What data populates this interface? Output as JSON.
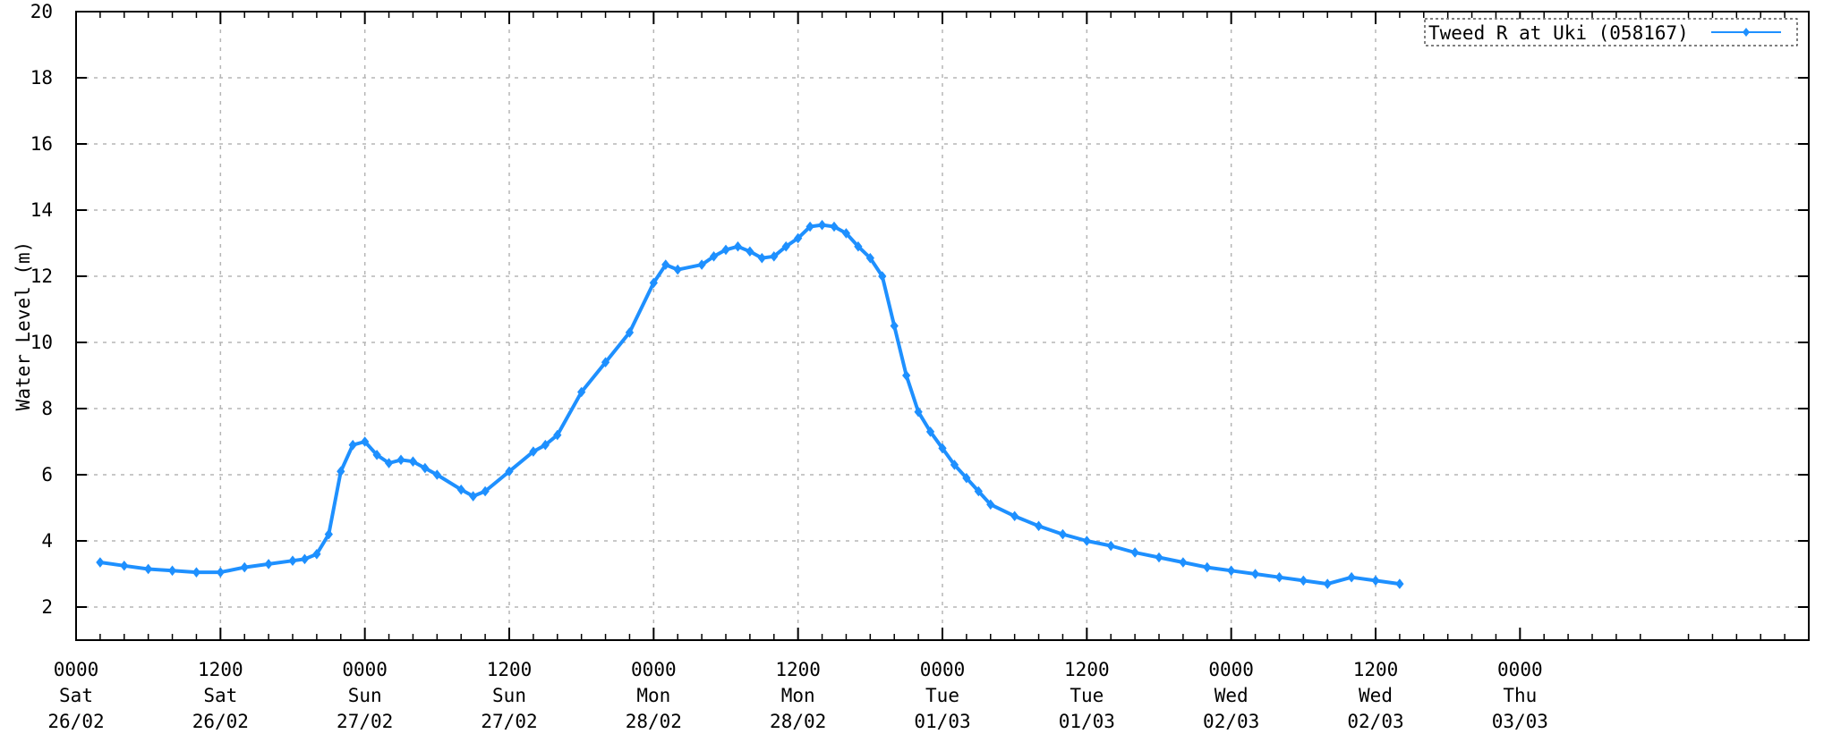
{
  "chart_data": {
    "type": "line",
    "title": "",
    "xlabel": "",
    "ylabel": "Water Level (m)",
    "ylim": [
      1,
      20
    ],
    "yticks": [
      2,
      4,
      6,
      8,
      10,
      12,
      14,
      16,
      18,
      20
    ],
    "xlim_hours": [
      0,
      144
    ],
    "grid": true,
    "legend_position": "top-right",
    "colors": {
      "series": "#1E90FF",
      "grid": "#b5b5b5",
      "axis": "#000000"
    },
    "x_tick_labels": [
      {
        "time": "0000",
        "day": "Sat",
        "date": "26/02"
      },
      {
        "time": "1200",
        "day": "Sat",
        "date": "26/02"
      },
      {
        "time": "0000",
        "day": "Sun",
        "date": "27/02"
      },
      {
        "time": "1200",
        "day": "Sun",
        "date": "27/02"
      },
      {
        "time": "0000",
        "day": "Mon",
        "date": "28/02"
      },
      {
        "time": "1200",
        "day": "Mon",
        "date": "28/02"
      },
      {
        "time": "0000",
        "day": "Tue",
        "date": "01/03"
      },
      {
        "time": "1200",
        "day": "Tue",
        "date": "01/03"
      },
      {
        "time": "0000",
        "day": "Wed",
        "date": "02/03"
      },
      {
        "time": "1200",
        "day": "Wed",
        "date": "02/03"
      },
      {
        "time": "0000",
        "day": "Thu",
        "date": "03/03"
      }
    ],
    "series": [
      {
        "name": "Tweed R at Uki (058167)",
        "x": [
          "26/02 02:00",
          "26/02 04:00",
          "26/02 06:00",
          "26/02 08:00",
          "26/02 10:00",
          "26/02 12:00",
          "26/02 14:00",
          "26/02 16:00",
          "26/02 18:00",
          "26/02 19:00",
          "26/02 20:00",
          "26/02 21:00",
          "26/02 22:00",
          "26/02 23:00",
          "27/02 00:00",
          "27/02 01:00",
          "27/02 02:00",
          "27/02 03:00",
          "27/02 04:00",
          "27/02 05:00",
          "27/02 06:00",
          "27/02 08:00",
          "27/02 09:00",
          "27/02 10:00",
          "27/02 12:00",
          "27/02 14:00",
          "27/02 15:00",
          "27/02 16:00",
          "27/02 18:00",
          "27/02 20:00",
          "27/02 22:00",
          "28/02 00:00",
          "28/02 01:00",
          "28/02 02:00",
          "28/02 04:00",
          "28/02 05:00",
          "28/02 06:00",
          "28/02 07:00",
          "28/02 08:00",
          "28/02 09:00",
          "28/02 10:00",
          "28/02 11:00",
          "28/02 12:00",
          "28/02 13:00",
          "28/02 14:00",
          "28/02 15:00",
          "28/02 16:00",
          "28/02 17:00",
          "28/02 18:00",
          "28/02 19:00",
          "28/02 20:00",
          "28/02 21:00",
          "28/02 22:00",
          "28/02 23:00",
          "01/03 00:00",
          "01/03 01:00",
          "01/03 02:00",
          "01/03 03:00",
          "01/03 04:00",
          "01/03 06:00",
          "01/03 08:00",
          "01/03 10:00",
          "01/03 12:00",
          "01/03 14:00",
          "01/03 16:00",
          "01/03 18:00",
          "01/03 20:00",
          "01/03 22:00",
          "02/03 00:00",
          "02/03 02:00",
          "02/03 04:00",
          "02/03 06:00",
          "02/03 08:00",
          "02/03 10:00",
          "02/03 12:00",
          "02/03 14:00"
        ],
        "y": [
          3.35,
          3.25,
          3.15,
          3.1,
          3.05,
          3.05,
          3.2,
          3.3,
          3.4,
          3.45,
          3.6,
          4.2,
          6.1,
          6.9,
          7.0,
          6.6,
          6.35,
          6.45,
          6.4,
          6.2,
          6.0,
          5.55,
          5.35,
          5.5,
          6.1,
          6.7,
          6.9,
          7.2,
          8.5,
          9.4,
          10.3,
          11.8,
          12.35,
          12.2,
          12.35,
          12.6,
          12.8,
          12.9,
          12.75,
          12.55,
          12.6,
          12.9,
          13.15,
          13.5,
          13.55,
          13.5,
          13.3,
          12.9,
          12.55,
          12.0,
          10.5,
          9.0,
          7.9,
          7.3,
          6.8,
          6.3,
          5.9,
          5.5,
          5.1,
          4.75,
          4.45,
          4.2,
          4.0,
          3.85,
          3.65,
          3.5,
          3.35,
          3.2,
          3.1,
          3.0,
          2.9,
          2.8,
          2.7,
          2.9,
          2.8,
          2.7
        ]
      }
    ]
  }
}
